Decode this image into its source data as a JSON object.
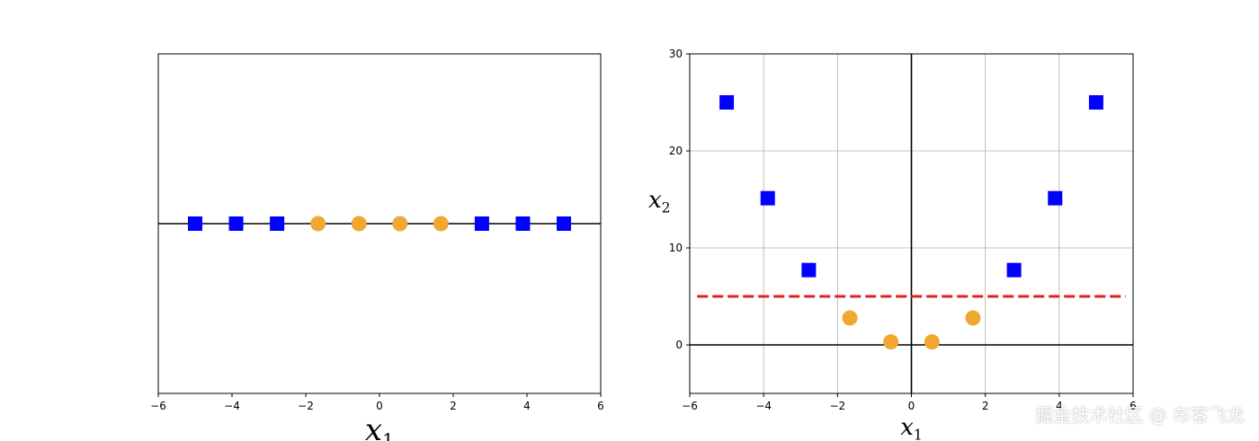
{
  "chart_data": [
    {
      "type": "scatter",
      "title": "",
      "xlabel": "x",
      "xlabel_sub": "1",
      "ylabel": "",
      "xlim": [
        -6,
        6
      ],
      "ylim": [
        -1,
        1
      ],
      "grid": false,
      "x_ticks": [
        -6,
        -4,
        -2,
        0,
        2,
        4,
        6
      ],
      "tick_labels_x": [
        "−6",
        "−4",
        "−2",
        "0",
        "2",
        "4",
        "6"
      ],
      "y_ticks": [],
      "series": [
        {
          "name": "",
          "marker": "square",
          "color": "#0000ff",
          "x": [
            -5,
            -3.8888888889,
            -2.7777777778,
            2.7777777778,
            3.8888888889,
            5
          ],
          "y": [
            0,
            0,
            0,
            0,
            0,
            0
          ]
        },
        {
          "name": "",
          "marker": "circle",
          "color": "#f0a830",
          "x": [
            -1.6666666667,
            -0.5555555556,
            0.5555555556,
            1.6666666667
          ],
          "y": [
            0,
            0,
            0,
            0
          ]
        }
      ],
      "reference_lines": [
        {
          "orientation": "horizontal",
          "value": 0,
          "color": "#000000",
          "style": "solid"
        }
      ]
    },
    {
      "type": "scatter",
      "title": "",
      "xlabel": "x",
      "xlabel_sub": "1",
      "ylabel": "x",
      "ylabel_sub": "2",
      "xlim": [
        -6,
        6
      ],
      "ylim": [
        -5,
        30
      ],
      "grid": true,
      "x_ticks": [
        -6,
        -4,
        -2,
        0,
        2,
        4,
        6
      ],
      "tick_labels_x": [
        "−6",
        "−4",
        "−2",
        "0",
        "2",
        "4",
        "6"
      ],
      "y_ticks": [
        0,
        10,
        20,
        30
      ],
      "tick_labels_y": [
        "0",
        "10",
        "20",
        "30"
      ],
      "series": [
        {
          "name": "",
          "marker": "square",
          "color": "#0000ff",
          "x": [
            -5,
            -3.8888888889,
            -2.7777777778,
            2.7777777778,
            3.8888888889,
            5
          ],
          "y": [
            25,
            15.1234567901,
            7.7160493827,
            7.7160493827,
            15.1234567901,
            25
          ]
        },
        {
          "name": "",
          "marker": "circle",
          "color": "#f0a830",
          "x": [
            -1.6666666667,
            -0.5555555556,
            0.5555555556,
            1.6666666667
          ],
          "y": [
            2.7777777778,
            0.3086419753,
            0.3086419753,
            2.7777777778
          ]
        }
      ],
      "reference_lines": [
        {
          "orientation": "horizontal",
          "value": 0,
          "color": "#000000",
          "style": "solid"
        },
        {
          "orientation": "vertical",
          "value": 0,
          "color": "#000000",
          "style": "solid"
        },
        {
          "orientation": "horizontal",
          "value": 5,
          "color": "#dd2222",
          "style": "dashed"
        }
      ]
    }
  ],
  "watermark": "掘金技术社区 @ 布客飞龙"
}
